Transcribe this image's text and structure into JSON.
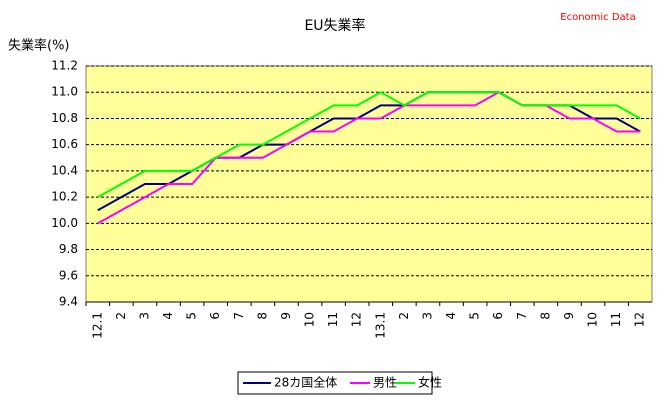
{
  "chart_data": {
    "type": "line",
    "title": "EU失業率",
    "ylabel": "失業率(%)",
    "watermark": "Economic Data",
    "categories": [
      "12.1",
      "2",
      "3",
      "4",
      "5",
      "6",
      "7",
      "8",
      "9",
      "10",
      "11",
      "12",
      "13.1",
      "2",
      "3",
      "4",
      "5",
      "6",
      "7",
      "8",
      "9",
      "10",
      "11",
      "12"
    ],
    "series": [
      {
        "name": "28カ国全体",
        "color": "#000080",
        "values": [
          10.1,
          10.2,
          10.3,
          10.3,
          10.4,
          10.5,
          10.5,
          10.6,
          10.6,
          10.7,
          10.8,
          10.8,
          10.9,
          10.9,
          11.0,
          11.0,
          11.0,
          11.0,
          10.9,
          10.9,
          10.9,
          10.8,
          10.8,
          10.7
        ]
      },
      {
        "name": "男性",
        "color": "#ff00ff",
        "values": [
          10.0,
          10.1,
          10.2,
          10.3,
          10.3,
          10.5,
          10.5,
          10.5,
          10.6,
          10.7,
          10.7,
          10.8,
          10.8,
          10.9,
          10.9,
          10.9,
          10.9,
          11.0,
          10.9,
          10.9,
          10.8,
          10.8,
          10.7,
          10.7
        ]
      },
      {
        "name": "女性",
        "color": "#00ff00",
        "values": [
          10.2,
          10.3,
          10.4,
          10.4,
          10.4,
          10.5,
          10.6,
          10.6,
          10.7,
          10.8,
          10.9,
          10.9,
          11.0,
          10.9,
          11.0,
          11.0,
          11.0,
          11.0,
          10.9,
          10.9,
          10.9,
          10.9,
          10.9,
          10.8
        ]
      }
    ],
    "ylim": [
      9.4,
      11.2
    ],
    "yticks": [
      9.4,
      9.6,
      9.8,
      {
        "value": 10,
        "label": "10.0"
      },
      10.2,
      10.4,
      10.6,
      10.8,
      {
        "value": 11,
        "label": "11.0"
      },
      11.2
    ],
    "grid": true,
    "plot_background": "#ffff99"
  }
}
